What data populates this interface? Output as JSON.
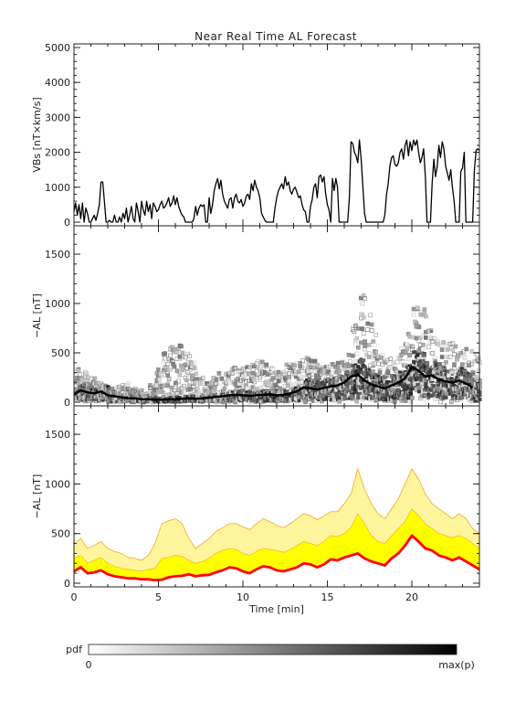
{
  "title": "Near Real Time AL Forecast",
  "chart_data": [
    {
      "type": "line",
      "ylabel": "VBs [nT×km/s]",
      "xlim": [
        0,
        24
      ],
      "ylim": [
        0,
        5000
      ],
      "yticks": [
        0,
        1000,
        2000,
        3000,
        4000,
        5000
      ],
      "xticks": [
        0,
        5,
        10,
        15,
        20
      ],
      "show_x_tick_labels": false,
      "series": [
        {
          "color": "#000000",
          "x": [
            0,
            0.1,
            0.2,
            0.3,
            0.4,
            0.5,
            0.6,
            0.7,
            0.8,
            0.9,
            1,
            1.1,
            1.2,
            1.3,
            1.4,
            1.5,
            1.6,
            1.7,
            1.8,
            1.9,
            2,
            2.1,
            2.2,
            2.3,
            2.4,
            2.5,
            2.6,
            2.7,
            2.8,
            2.9,
            3,
            3.1,
            3.2,
            3.3,
            3.4,
            3.5,
            3.6,
            3.7,
            3.8,
            3.9,
            4,
            4.1,
            4.2,
            4.3,
            4.4,
            4.5,
            4.6,
            4.7,
            4.8,
            4.9,
            5,
            5.1,
            5.2,
            5.3,
            5.4,
            5.5,
            5.6,
            5.7,
            5.8,
            5.9,
            6,
            6.1,
            6.2,
            6.3,
            6.4,
            6.5,
            6.6,
            6.7,
            6.8,
            6.9,
            7,
            7.1,
            7.2,
            7.3,
            7.4,
            7.5,
            7.6,
            7.7,
            7.8,
            7.9,
            8,
            8.1,
            8.2,
            8.3,
            8.4,
            8.5,
            8.6,
            8.7,
            8.8,
            8.9,
            9,
            9.1,
            9.2,
            9.3,
            9.4,
            9.5,
            9.6,
            9.7,
            9.8,
            9.9,
            10,
            10.1,
            10.2,
            10.3,
            10.4,
            10.5,
            10.6,
            10.7,
            10.8,
            10.9,
            11,
            11.1,
            11.2,
            11.3,
            11.4,
            11.5,
            11.6,
            11.7,
            11.8,
            11.9,
            12,
            12.1,
            12.2,
            12.3,
            12.4,
            12.5,
            12.6,
            12.7,
            12.8,
            12.9,
            13,
            13.1,
            13.2,
            13.3,
            13.4,
            13.5,
            13.6,
            13.7,
            13.8,
            13.9,
            14,
            14.1,
            14.2,
            14.3,
            14.4,
            14.5,
            14.6,
            14.7,
            14.8,
            14.9,
            15,
            15.1,
            15.2,
            15.3,
            15.4,
            15.5,
            15.6,
            15.7,
            15.8,
            15.9,
            16,
            16.1,
            16.2,
            16.3,
            16.4,
            16.5,
            16.6,
            16.7,
            16.8,
            16.9,
            17,
            17.1,
            17.2,
            17.3,
            17.4,
            17.5,
            17.6,
            17.7,
            17.8,
            17.9,
            18,
            18.1,
            18.2,
            18.3,
            18.4,
            18.5,
            18.6,
            18.7,
            18.8,
            18.9,
            19,
            19.1,
            19.2,
            19.3,
            19.4,
            19.5,
            19.6,
            19.7,
            19.8,
            19.9,
            20,
            20.1,
            20.2,
            20.3,
            20.4,
            20.5,
            20.6,
            20.7,
            20.8,
            20.9,
            21,
            21.1,
            21.2,
            21.3,
            21.4,
            21.5,
            21.6,
            21.7,
            21.8,
            21.9,
            22,
            22.1,
            22.2,
            22.3,
            22.4,
            22.5,
            22.6,
            22.7,
            22.8,
            22.9,
            23,
            23.1,
            23.2,
            23.3,
            23.4,
            23.5,
            23.6,
            23.7,
            23.8,
            23.9,
            24
          ],
          "y": [
            300,
            550,
            200,
            500,
            100,
            550,
            0,
            400,
            250,
            0,
            0,
            100,
            200,
            50,
            250,
            500,
            1150,
            1150,
            600,
            0,
            0,
            50,
            0,
            0,
            200,
            0,
            0,
            150,
            0,
            250,
            100,
            400,
            0,
            200,
            450,
            100,
            0,
            550,
            300,
            0,
            600,
            350,
            200,
            600,
            300,
            500,
            100,
            550,
            450,
            300,
            350,
            500,
            600,
            400,
            450,
            550,
            700,
            450,
            550,
            750,
            500,
            700,
            450,
            300,
            200,
            150,
            0,
            0,
            0,
            0,
            0,
            100,
            450,
            200,
            400,
            500,
            450,
            500,
            0,
            0,
            700,
            250,
            500,
            900,
            1100,
            1250,
            950,
            1200,
            800,
            600,
            500,
            400,
            650,
            700,
            400,
            700,
            800,
            600,
            550,
            650,
            450,
            550,
            750,
            800,
            650,
            1100,
            900,
            1200,
            1000,
            900,
            700,
            250,
            150,
            50,
            0,
            0,
            0,
            0,
            0,
            400,
            700,
            900,
            1000,
            1100,
            950,
            1300,
            1050,
            1150,
            900,
            800,
            950,
            1000,
            850,
            700,
            750,
            500,
            350,
            300,
            0,
            0,
            450,
            650,
            1000,
            1100,
            700,
            1300,
            1350,
            1150,
            1300,
            800,
            500,
            350,
            0,
            1250,
            900,
            1250,
            1000,
            0,
            0,
            0,
            0,
            0,
            0,
            700,
            2300,
            2250,
            2000,
            1900,
            1700,
            2350,
            1800,
            1000,
            250,
            0,
            0,
            0,
            0,
            0,
            0,
            0,
            0,
            0,
            0,
            0,
            200,
            800,
            1100,
            1600,
            1850,
            1900,
            1650,
            1600,
            1700,
            2000,
            2100,
            1800,
            2200,
            2350,
            1900,
            2300,
            2050,
            2350,
            2200,
            2350,
            2000,
            1700,
            1850,
            2100,
            1300,
            0,
            0,
            0,
            1100,
            1800,
            1300,
            1600,
            2200,
            1850,
            2300,
            2100,
            1600,
            1400,
            1200,
            1500,
            1000,
            600,
            0,
            0,
            0,
            1450,
            1550,
            2000,
            0,
            0,
            0,
            0,
            0,
            1500,
            2050,
            2100,
            2050
          ]
        }
      ]
    },
    {
      "type": "heatmap",
      "ylabel": "−AL [nT]",
      "xlim": [
        0,
        24
      ],
      "ylim": [
        0,
        1750
      ],
      "yticks": [
        0,
        500,
        1000,
        1500
      ],
      "xticks": [
        0,
        5,
        10,
        15,
        20
      ],
      "show_x_tick_labels": false,
      "colormap": [
        "#ffffff",
        "#000000"
      ],
      "x": [
        0,
        0.4,
        0.8,
        1.2,
        1.6,
        2,
        2.4,
        2.8,
        3.2,
        3.6,
        4,
        4.4,
        4.8,
        5.2,
        5.6,
        6,
        6.4,
        6.8,
        7.2,
        7.6,
        8,
        8.4,
        8.8,
        9.2,
        9.6,
        10,
        10.4,
        10.8,
        11.2,
        11.6,
        12,
        12.4,
        12.8,
        13.2,
        13.6,
        14,
        14.4,
        14.8,
        15.2,
        15.6,
        16,
        16.4,
        16.8,
        17.2,
        17.6,
        18,
        18.4,
        18.8,
        19.2,
        19.6,
        20,
        20.4,
        20.8,
        21.2,
        21.6,
        22,
        22.4,
        22.8,
        23.2,
        23.6
      ],
      "median": [
        80,
        120,
        100,
        90,
        110,
        70,
        60,
        50,
        40,
        40,
        30,
        30,
        25,
        25,
        30,
        30,
        35,
        40,
        35,
        40,
        45,
        55,
        60,
        70,
        75,
        70,
        65,
        70,
        75,
        80,
        70,
        75,
        90,
        110,
        150,
        140,
        130,
        145,
        160,
        170,
        200,
        260,
        280,
        220,
        180,
        160,
        140,
        170,
        200,
        240,
        360,
        320,
        260,
        270,
        230,
        210,
        200,
        220,
        190,
        150
      ],
      "spread": [
        350,
        320,
        250,
        200,
        180,
        150,
        160,
        200,
        150,
        120,
        100,
        180,
        350,
        500,
        560,
        580,
        500,
        420,
        250,
        200,
        250,
        300,
        320,
        350,
        350,
        380,
        400,
        420,
        380,
        350,
        350,
        380,
        400,
        420,
        450,
        420,
        400,
        380,
        400,
        420,
        500,
        800,
        1100,
        900,
        700,
        500,
        450,
        500,
        600,
        700,
        1000,
        950,
        750,
        650,
        620,
        600,
        580,
        550,
        520,
        500
      ],
      "density_scale": "0 to max(p)"
    },
    {
      "type": "area",
      "ylabel": "−AL [nT]",
      "xlabel": "Time [min]",
      "xlim": [
        0,
        24
      ],
      "ylim": [
        0,
        1750
      ],
      "yticks": [
        0,
        500,
        1000,
        1500
      ],
      "xticks": [
        0,
        5,
        10,
        15,
        20
      ],
      "x": [
        0,
        0.4,
        0.8,
        1.2,
        1.6,
        2,
        2.4,
        2.8,
        3.2,
        3.6,
        4,
        4.4,
        4.8,
        5.2,
        5.6,
        6,
        6.4,
        6.8,
        7.2,
        7.6,
        8,
        8.4,
        8.8,
        9.2,
        9.6,
        10,
        10.4,
        10.8,
        11.2,
        11.6,
        12,
        12.4,
        12.8,
        13.2,
        13.6,
        14,
        14.4,
        14.8,
        15.2,
        15.6,
        16,
        16.4,
        16.8,
        17.2,
        17.6,
        18,
        18.4,
        18.8,
        19.2,
        19.6,
        20,
        20.4,
        20.8,
        21.2,
        21.6,
        22,
        22.4,
        22.8,
        23.2,
        23.6,
        24
      ],
      "median": [
        120,
        160,
        100,
        110,
        130,
        90,
        70,
        60,
        50,
        50,
        40,
        40,
        30,
        35,
        60,
        70,
        75,
        90,
        70,
        80,
        85,
        110,
        130,
        160,
        150,
        120,
        100,
        140,
        170,
        160,
        130,
        120,
        140,
        160,
        200,
        190,
        160,
        190,
        240,
        230,
        260,
        280,
        300,
        250,
        220,
        200,
        180,
        250,
        300,
        380,
        480,
        420,
        350,
        330,
        280,
        260,
        230,
        260,
        220,
        180,
        140
      ],
      "band_inner_upper": [
        250,
        280,
        200,
        230,
        260,
        200,
        170,
        150,
        140,
        130,
        120,
        140,
        150,
        250,
        260,
        280,
        270,
        230,
        200,
        220,
        250,
        300,
        330,
        350,
        340,
        300,
        280,
        320,
        350,
        340,
        330,
        310,
        340,
        380,
        420,
        400,
        380,
        420,
        480,
        470,
        500,
        560,
        700,
        600,
        480,
        420,
        400,
        480,
        550,
        620,
        750,
        680,
        600,
        550,
        500,
        480,
        460,
        480,
        450,
        400,
        350
      ],
      "band_outer_upper": [
        400,
        450,
        350,
        380,
        420,
        350,
        320,
        300,
        260,
        250,
        230,
        280,
        400,
        600,
        630,
        650,
        600,
        450,
        350,
        400,
        450,
        520,
        560,
        600,
        600,
        570,
        540,
        600,
        650,
        620,
        580,
        560,
        600,
        650,
        700,
        680,
        640,
        680,
        720,
        720,
        800,
        900,
        1150,
        950,
        800,
        700,
        650,
        750,
        850,
        1000,
        1150,
        1050,
        900,
        800,
        750,
        700,
        650,
        700,
        650,
        550,
        500
      ],
      "band_colors": {
        "inner": "#ffff00",
        "outer": "#fff59d",
        "outline": "#f5a623"
      },
      "median_color": "#ff0000"
    },
    {
      "type": "colorbar",
      "label": "pdf",
      "min_label": "0",
      "max_label": "max(p)",
      "colormap": [
        "#ffffff",
        "#000000"
      ]
    }
  ]
}
